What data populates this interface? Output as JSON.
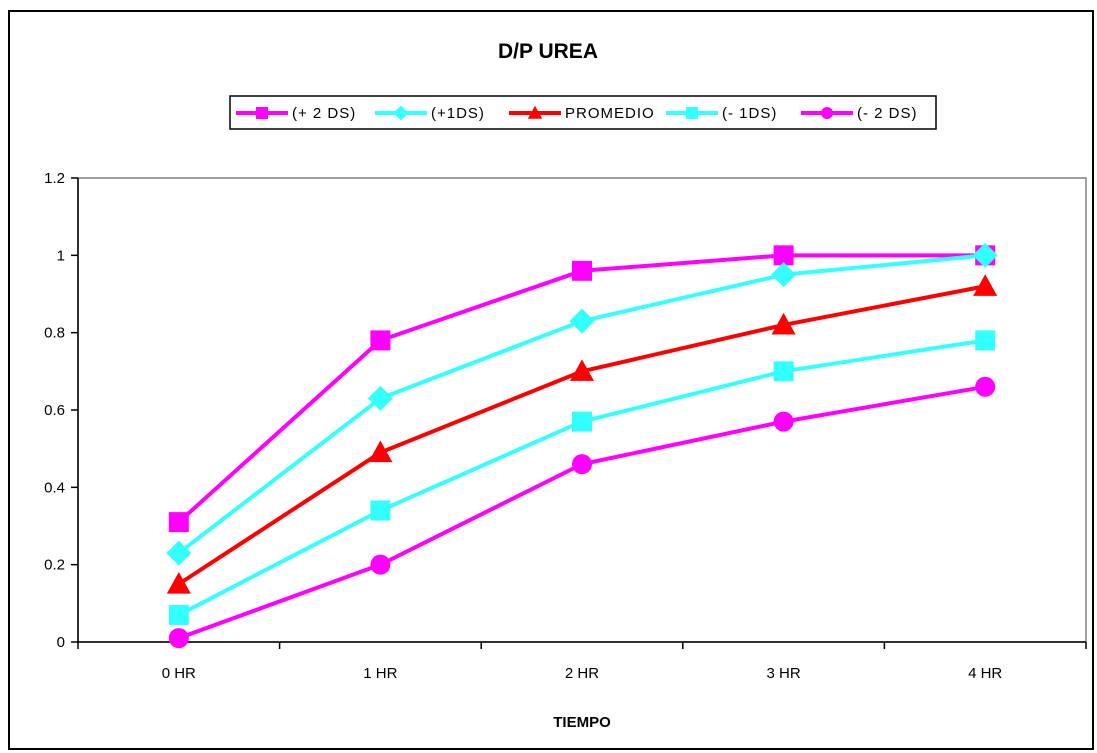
{
  "chart_data": {
    "type": "line",
    "title": "D/P UREA",
    "xlabel": "TIEMPO",
    "ylabel": "",
    "categories": [
      "0 HR",
      "1 HR",
      "2 HR",
      "3 HR",
      "4 HR"
    ],
    "ylim": [
      0,
      1.2
    ],
    "yticks": [
      "0",
      "0.2",
      "0.4",
      "0.6",
      "0.8",
      "1",
      "1.2"
    ],
    "ytick_values": [
      0,
      0.2,
      0.4,
      0.6,
      0.8,
      1.0,
      1.2
    ],
    "grid": false,
    "legend_position": "top",
    "series": [
      {
        "name": "(+ 2 DS)",
        "color": "#ff00ff",
        "marker": "square",
        "values": [
          0.31,
          0.78,
          0.96,
          1.0,
          1.0
        ]
      },
      {
        "name": "(+1DS)",
        "color": "#33ffff",
        "marker": "diamond",
        "values": [
          0.23,
          0.63,
          0.83,
          0.95,
          1.0
        ]
      },
      {
        "name": "PROMEDIO",
        "color": "#ff0000",
        "marker": "triangle",
        "values": [
          0.15,
          0.49,
          0.7,
          0.82,
          0.92
        ]
      },
      {
        "name": "(- 1DS)",
        "color": "#33ffff",
        "marker": "square",
        "values": [
          0.07,
          0.34,
          0.57,
          0.7,
          0.78
        ]
      },
      {
        "name": "(- 2 DS)",
        "color": "#ff00ff",
        "marker": "circle",
        "values": [
          0.01,
          0.2,
          0.46,
          0.57,
          0.66
        ]
      }
    ]
  }
}
